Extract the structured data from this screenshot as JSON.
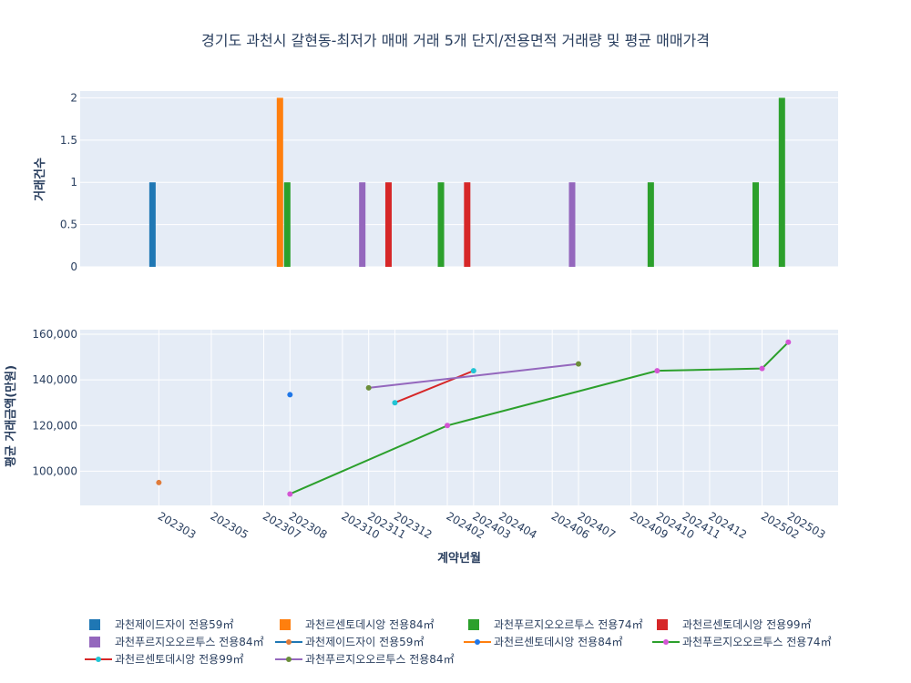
{
  "chart_data": {
    "title": "경기도 과천시 갈현동-최저가 매매 거래 5개 단지/전용면적 거래량 및 평균 매매가격",
    "x_categories": [
      "202303",
      "202305",
      "202307",
      "202308",
      "202310",
      "202311",
      "202312",
      "202402",
      "202403",
      "202404",
      "202406",
      "202407",
      "202409",
      "202410",
      "202411",
      "202412",
      "202502",
      "202503"
    ],
    "bar_chart": {
      "type": "bar",
      "ylabel": "거래건수",
      "ylim": [
        0,
        2.08
      ],
      "yticks": [
        0,
        0.5,
        1,
        1.5,
        2
      ],
      "ytick_labels": [
        "0",
        "0.5",
        "1",
        "1.5",
        "2"
      ],
      "series": [
        {
          "name": "과천제이드자이 전용59㎡",
          "color": "#1f77b4",
          "points": [
            {
              "x": "202303",
              "y": 1
            }
          ]
        },
        {
          "name": "과천르센토데시앙 전용84㎡",
          "color": "#ff7f0e",
          "points": [
            {
              "x": "202308",
              "y": 2
            }
          ]
        },
        {
          "name": "과천푸르지오오르투스 전용74㎡",
          "color": "#2ca02c",
          "points": [
            {
              "x": "202308",
              "y": 1
            },
            {
              "x": "202402",
              "y": 1
            },
            {
              "x": "202410",
              "y": 1
            },
            {
              "x": "202502",
              "y": 1
            },
            {
              "x": "202503",
              "y": 2
            }
          ]
        },
        {
          "name": "과천르센토데시앙 전용99㎡",
          "color": "#d62728",
          "points": [
            {
              "x": "202312",
              "y": 1
            },
            {
              "x": "202403",
              "y": 1
            }
          ]
        },
        {
          "name": "과천푸르지오오르투스 전용84㎡",
          "color": "#9467bd",
          "points": [
            {
              "x": "202311",
              "y": 1
            },
            {
              "x": "202407",
              "y": 1
            }
          ]
        }
      ]
    },
    "line_chart": {
      "type": "line",
      "xlabel": "계약년월",
      "ylabel": "평균 거래금액(만원)",
      "ylim": [
        85000,
        162000
      ],
      "yticks": [
        100000,
        120000,
        140000,
        160000
      ],
      "ytick_labels": [
        "100,000",
        "120,000",
        "140,000",
        "160,000"
      ],
      "series": [
        {
          "name": "과천제이드자이 전용59㎡",
          "line_color": "#1f77b4",
          "marker_color": "#e07b39",
          "points": [
            {
              "x": "202303",
              "y": 95000
            }
          ]
        },
        {
          "name": "과천르센토데시앙 전용84㎡",
          "line_color": "#ff7f0e",
          "marker_color": "#1f77e8",
          "points": [
            {
              "x": "202308",
              "y": 133500
            }
          ]
        },
        {
          "name": "과천푸르지오오르투스 전용74㎡",
          "line_color": "#2ca02c",
          "marker_color": "#d455d4",
          "points": [
            {
              "x": "202308",
              "y": 90000
            },
            {
              "x": "202402",
              "y": 120000
            },
            {
              "x": "202410",
              "y": 144000
            },
            {
              "x": "202502",
              "y": 145000
            },
            {
              "x": "202503",
              "y": 156500
            }
          ]
        },
        {
          "name": "과천르센토데시앙 전용99㎡",
          "line_color": "#d62728",
          "marker_color": "#22c4d4",
          "points": [
            {
              "x": "202312",
              "y": 130000
            },
            {
              "x": "202403",
              "y": 144000
            }
          ]
        },
        {
          "name": "과천푸르지오오르투스 전용84㎡",
          "line_color": "#9467bd",
          "marker_color": "#6b8e3a",
          "points": [
            {
              "x": "202311",
              "y": 136500
            },
            {
              "x": "202407",
              "y": 147000
            }
          ]
        }
      ]
    },
    "legend": {
      "placement": "bottom",
      "entries": [
        {
          "label": "과천제이드자이 전용59㎡",
          "kind": "bar",
          "color": "#1f77b4"
        },
        {
          "label": "과천르센토데시앙 전용84㎡",
          "kind": "bar",
          "color": "#ff7f0e"
        },
        {
          "label": "과천푸르지오오르투스 전용74㎡",
          "kind": "bar",
          "color": "#2ca02c"
        },
        {
          "label": "과천르센토데시앙 전용99㎡",
          "kind": "bar",
          "color": "#d62728"
        },
        {
          "label": "과천푸르지오오르투스 전용84㎡",
          "kind": "bar",
          "color": "#9467bd"
        },
        {
          "label": "과천제이드자이 전용59㎡",
          "kind": "line",
          "color": "#1f77b4",
          "marker": "#e07b39"
        },
        {
          "label": "과천르센토데시앙 전용84㎡",
          "kind": "line",
          "color": "#ff7f0e",
          "marker": "#1f77e8"
        },
        {
          "label": "과천푸르지오오르투스 전용74㎡",
          "kind": "line",
          "color": "#2ca02c",
          "marker": "#d455d4"
        },
        {
          "label": "과천르센토데시앙 전용99㎡",
          "kind": "line",
          "color": "#d62728",
          "marker": "#22c4d4"
        },
        {
          "label": "과천푸르지오오르투스 전용84㎡",
          "kind": "line",
          "color": "#9467bd",
          "marker": "#6b8e3a"
        }
      ]
    },
    "grid": true,
    "plot_bg": "#e5ecf6"
  }
}
